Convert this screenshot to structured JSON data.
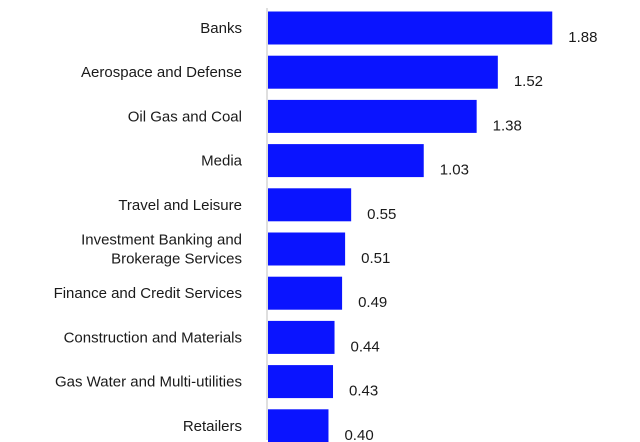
{
  "chart_data": {
    "type": "bar",
    "orientation": "horizontal",
    "categories": [
      "Banks",
      "Aerospace and Defense",
      "Oil Gas and Coal",
      "Media",
      "Travel and Leisure",
      "Investment Banking and Brokerage Services",
      "Finance and Credit Services",
      "Construction and Materials",
      "Gas Water and Multi-utilities",
      "Retailers"
    ],
    "category_lines": [
      [
        "Banks"
      ],
      [
        "Aerospace and Defense"
      ],
      [
        "Oil Gas and Coal"
      ],
      [
        "Media"
      ],
      [
        "Travel and Leisure"
      ],
      [
        "Investment Banking and",
        "Brokerage Services"
      ],
      [
        "Finance and Credit Services"
      ],
      [
        "Construction and Materials"
      ],
      [
        "Gas Water and Multi-utilities"
      ],
      [
        "Retailers"
      ]
    ],
    "values": [
      1.88,
      1.52,
      1.38,
      1.03,
      0.55,
      0.51,
      0.49,
      0.44,
      0.43,
      0.4
    ],
    "value_labels": [
      "1.88",
      "1.52",
      "1.38",
      "1.03",
      "0.55",
      "0.51",
      "0.49",
      "0.44",
      "0.43",
      "0.40"
    ],
    "xlim": [
      0,
      2.0
    ],
    "title": "",
    "xlabel": "",
    "ylabel": "",
    "grid": false,
    "legend": "none",
    "colors": {
      "bar": "#0a14ff",
      "axis": "#bfbfbf",
      "text": "#1a1a1a"
    }
  }
}
